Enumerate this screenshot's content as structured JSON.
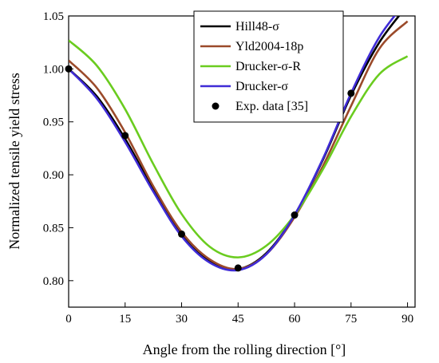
{
  "chart_data": {
    "type": "line",
    "title": "",
    "xlabel": "Angle from the rolling direction [°]",
    "ylabel": "Normalized tensile yield stress",
    "xlim": [
      0,
      92
    ],
    "ylim": [
      0.775,
      1.05
    ],
    "xticks": [
      0,
      15,
      30,
      45,
      60,
      75,
      90
    ],
    "yticks": [
      0.8,
      0.85,
      0.9,
      0.95,
      1.0,
      1.05
    ],
    "ytick_labels": [
      "0.80",
      "0.85",
      "0.90",
      "0.95",
      "1.00",
      "1.05"
    ],
    "grid": false,
    "legend_position": "top-right",
    "series": [
      {
        "name": "Hill48-σ",
        "color": "#000000",
        "x": [
          0,
          7.5,
          15,
          22.5,
          30,
          37.5,
          45,
          52.5,
          60,
          67.5,
          75,
          82.5,
          90
        ],
        "y": [
          1.0,
          0.974,
          0.934,
          0.886,
          0.843,
          0.818,
          0.811,
          0.826,
          0.862,
          0.914,
          0.975,
          1.025,
          1.06
        ]
      },
      {
        "name": "Yld2004-18p",
        "color": "#9b4a2a",
        "x": [
          0,
          7.5,
          15,
          22.5,
          30,
          37.5,
          45,
          52.5,
          60,
          67.5,
          75,
          82.5,
          90
        ],
        "y": [
          1.008,
          0.982,
          0.94,
          0.889,
          0.846,
          0.82,
          0.811,
          0.825,
          0.86,
          0.908,
          0.965,
          1.019,
          1.045
        ]
      },
      {
        "name": "Drucker-σ-R",
        "color": "#6acc1f",
        "x": [
          0,
          7.5,
          15,
          22.5,
          30,
          37.5,
          45,
          52.5,
          60,
          67.5,
          75,
          82.5,
          90
        ],
        "y": [
          1.027,
          1.003,
          0.962,
          0.91,
          0.863,
          0.832,
          0.822,
          0.833,
          0.862,
          0.905,
          0.955,
          0.995,
          1.012
        ]
      },
      {
        "name": "Drucker-σ",
        "color": "#3f2bd6",
        "x": [
          0,
          7.5,
          15,
          22.5,
          30,
          37.5,
          45,
          52.5,
          60,
          67.5,
          75,
          82.5,
          90
        ],
        "y": [
          1.0,
          0.972,
          0.931,
          0.884,
          0.842,
          0.817,
          0.81,
          0.825,
          0.862,
          0.915,
          0.977,
          1.03,
          1.065
        ]
      }
    ],
    "scatter": {
      "name": "Exp. data [35]",
      "color": "#000000",
      "x": [
        0,
        15,
        30,
        45,
        60,
        75
      ],
      "y": [
        1.0,
        0.937,
        0.844,
        0.812,
        0.862,
        0.977
      ]
    }
  }
}
